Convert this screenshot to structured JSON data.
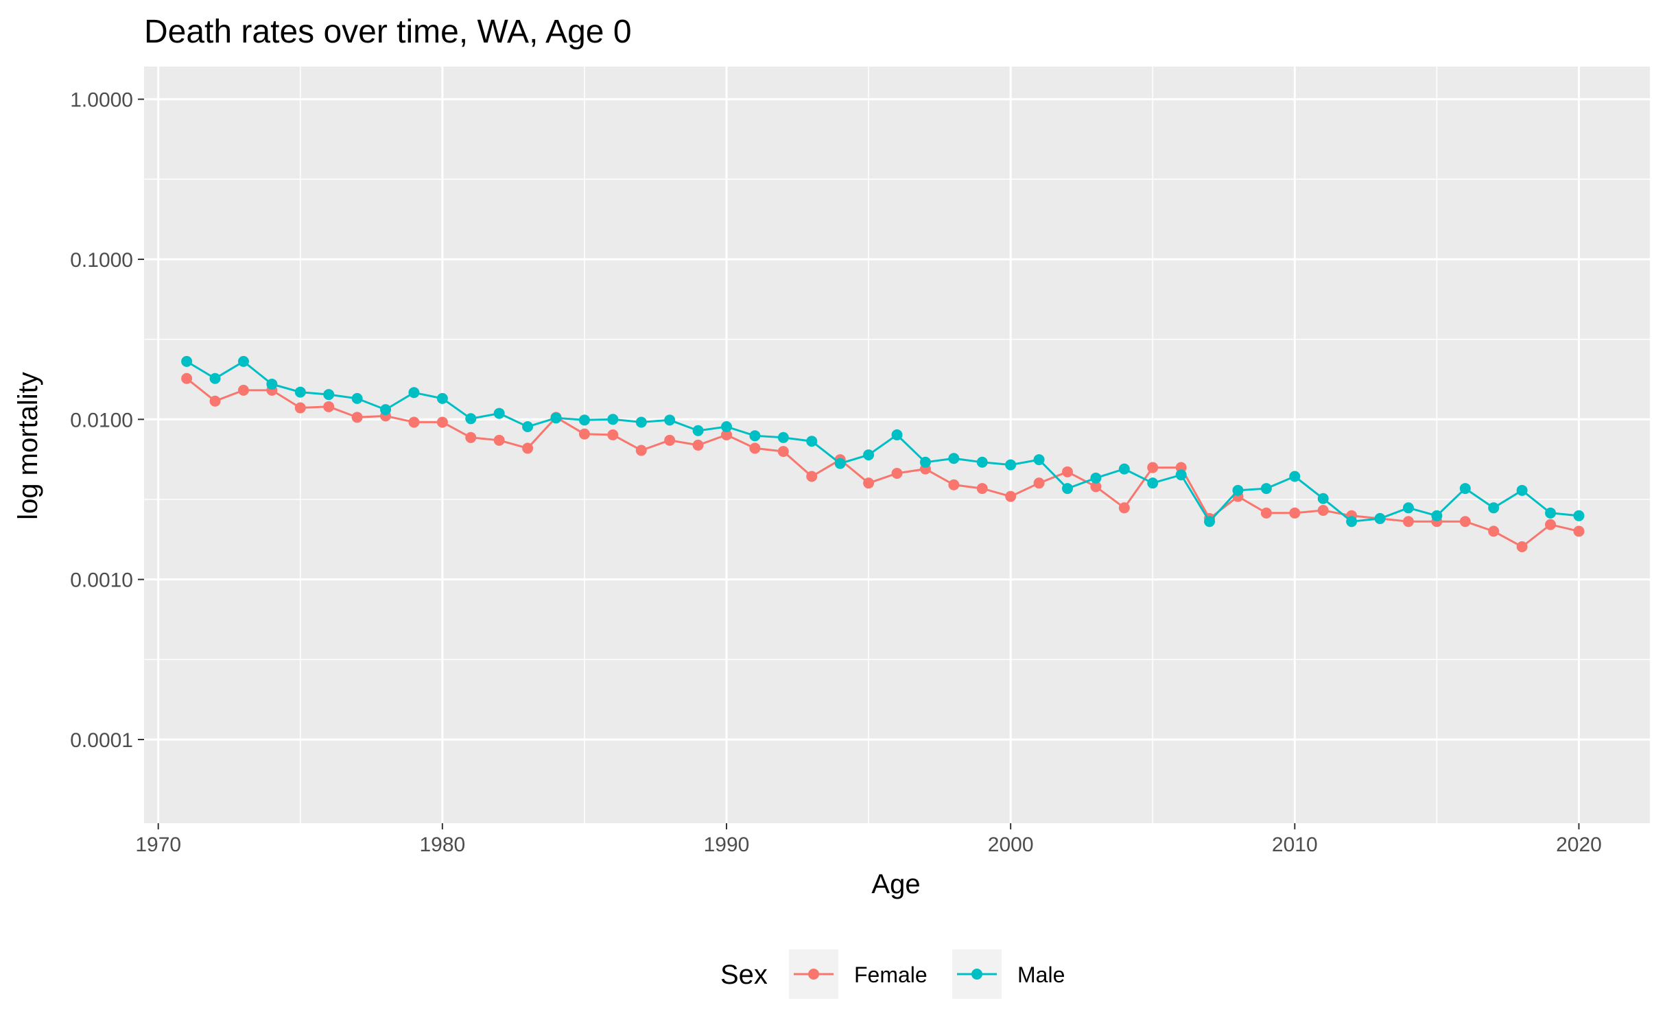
{
  "chart_data": {
    "type": "line",
    "title": "Death rates over time, WA, Age 0",
    "xlabel": "Age",
    "ylabel": "log mortality",
    "xlim": [
      1969.5,
      2022.5
    ],
    "ylim": [
      3e-05,
      1.6
    ],
    "y_scale": "log10",
    "x_ticks": [
      1970,
      1980,
      1990,
      2000,
      2010,
      2020
    ],
    "x_tick_labels": [
      "1970",
      "1980",
      "1990",
      "2000",
      "2010",
      "2020"
    ],
    "y_ticks": [
      0.0001,
      0.001,
      0.01,
      0.1,
      1
    ],
    "y_tick_labels": [
      "0.0001",
      "0.0010",
      "0.0100",
      "0.1000",
      "1.0000"
    ],
    "grid": true,
    "legend": {
      "title": "Sex",
      "position": "bottom"
    },
    "x": [
      1971,
      1972,
      1973,
      1974,
      1975,
      1976,
      1977,
      1978,
      1979,
      1980,
      1981,
      1982,
      1983,
      1984,
      1985,
      1986,
      1987,
      1988,
      1989,
      1990,
      1991,
      1992,
      1993,
      1994,
      1995,
      1996,
      1997,
      1998,
      1999,
      2000,
      2001,
      2002,
      2003,
      2004,
      2005,
      2006,
      2007,
      2008,
      2009,
      2010,
      2011,
      2012,
      2013,
      2014,
      2015,
      2016,
      2017,
      2018,
      2019,
      2020
    ],
    "series": [
      {
        "name": "Female",
        "color": "#F8766D",
        "values": [
          0.018,
          0.013,
          0.0152,
          0.0152,
          0.0118,
          0.012,
          0.0103,
          0.0105,
          0.0096,
          0.0096,
          0.0077,
          0.0074,
          0.0066,
          0.0103,
          0.0081,
          0.008,
          0.0064,
          0.0074,
          0.0069,
          0.008,
          0.0066,
          0.0063,
          0.0044,
          0.0056,
          0.004,
          0.0046,
          0.0049,
          0.0039,
          0.0037,
          0.0033,
          0.004,
          0.0047,
          0.0038,
          0.0028,
          0.005,
          0.005,
          0.0024,
          0.0033,
          0.0026,
          0.0026,
          0.0027,
          0.0025,
          0.0024,
          0.0023,
          0.0023,
          0.0023,
          0.002,
          0.0016,
          0.0022,
          0.002
        ]
      },
      {
        "name": "Male",
        "color": "#00BFC4",
        "values": [
          0.023,
          0.018,
          0.023,
          0.0166,
          0.0148,
          0.0143,
          0.0135,
          0.0115,
          0.0147,
          0.0135,
          0.0101,
          0.0109,
          0.009,
          0.0102,
          0.0099,
          0.01,
          0.0096,
          0.0099,
          0.0085,
          0.009,
          0.0079,
          0.0077,
          0.0073,
          0.0053,
          0.006,
          0.008,
          0.0054,
          0.0057,
          0.0054,
          0.0052,
          0.0056,
          0.0037,
          0.0043,
          0.0049,
          0.004,
          0.0045,
          0.0023,
          0.0036,
          0.0037,
          0.0044,
          0.0032,
          0.0023,
          0.0024,
          0.0028,
          0.0025,
          0.0037,
          0.0028,
          0.0036,
          0.0026,
          0.0025
        ]
      }
    ]
  }
}
